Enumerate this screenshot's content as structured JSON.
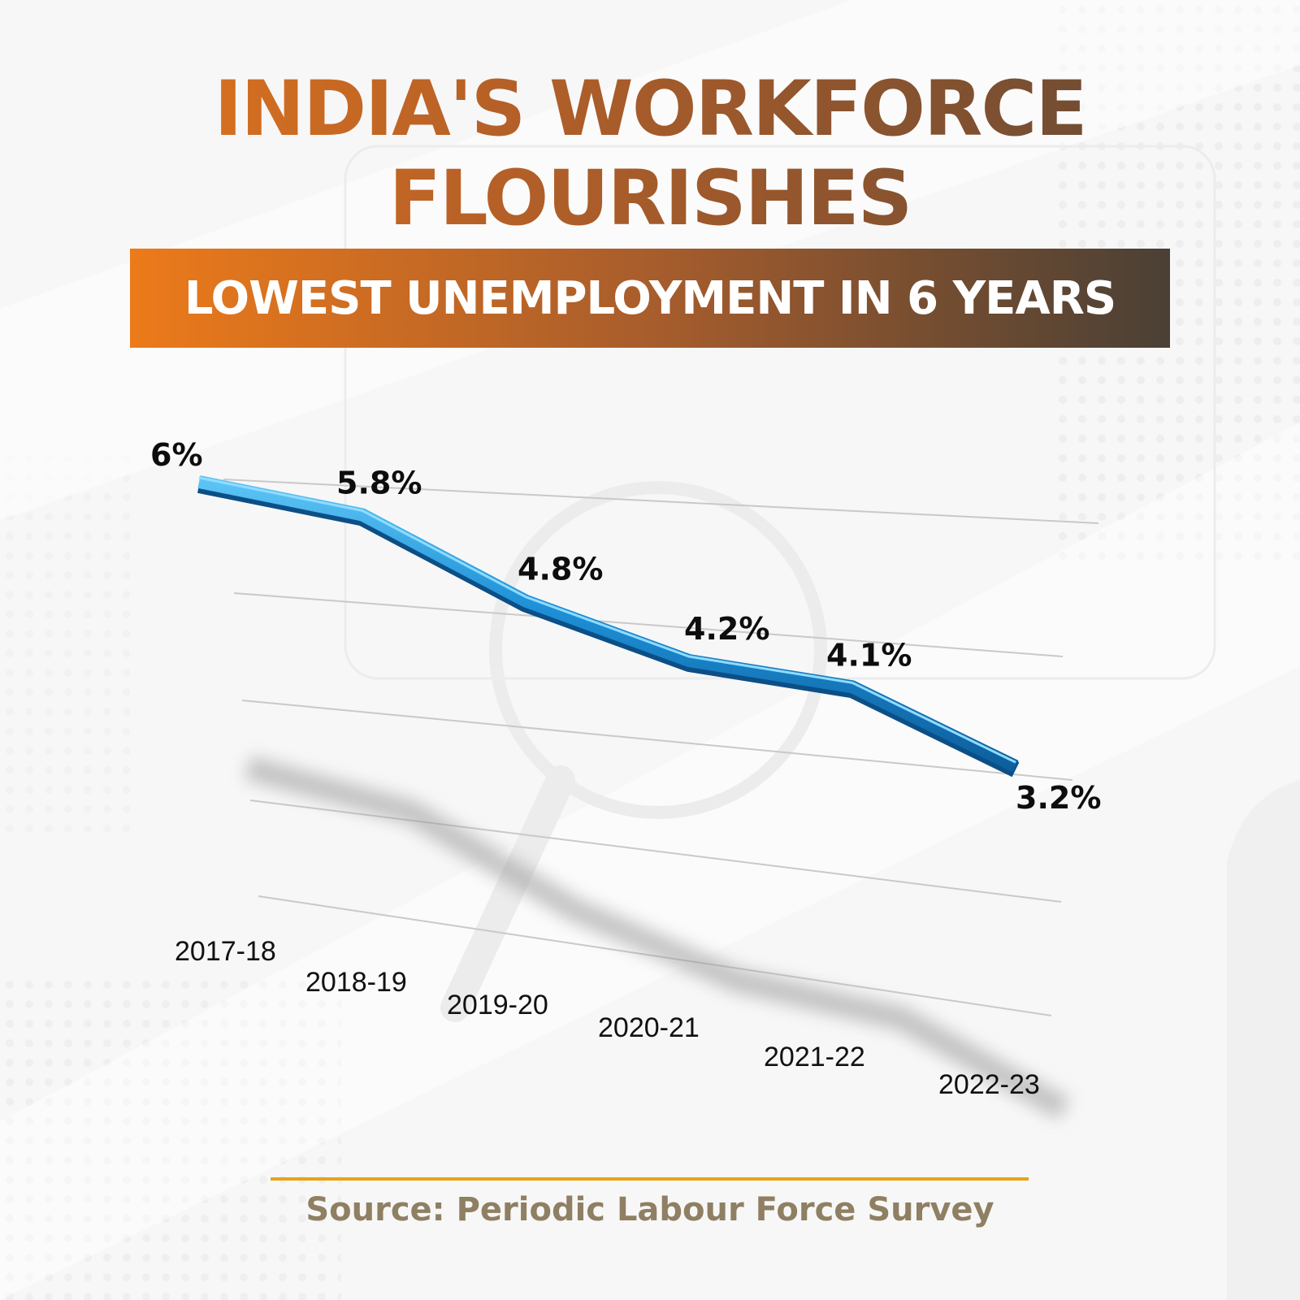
{
  "header": {
    "title_line1": "INDIA'S WORKFORCE",
    "title_line2": "FLOURISHES",
    "banner": "LOWEST UNEMPLOYMENT IN 6 YEARS"
  },
  "footer": {
    "source": "Source: Periodic Labour Force Survey"
  },
  "colors": {
    "line": "#1e8fd6",
    "title_start": "#ec7a1a",
    "title_end": "#4a4035",
    "source_rule": "#e6a31d",
    "source_text": "#8f7f63"
  },
  "chart_data": {
    "type": "line",
    "title": "",
    "xlabel": "",
    "ylabel": "",
    "categories": [
      "2017-18",
      "2018-19",
      "2019-20",
      "2020-21",
      "2021-22",
      "2022-23"
    ],
    "series": [
      {
        "values": [
          6.0,
          5.8,
          4.8,
          4.2,
          4.1,
          3.2
        ]
      }
    ],
    "data_labels": [
      "6%",
      "5.8%",
      "4.8%",
      "4.2%",
      "4.1%",
      "3.2%"
    ],
    "grid": true,
    "legend": "none"
  }
}
